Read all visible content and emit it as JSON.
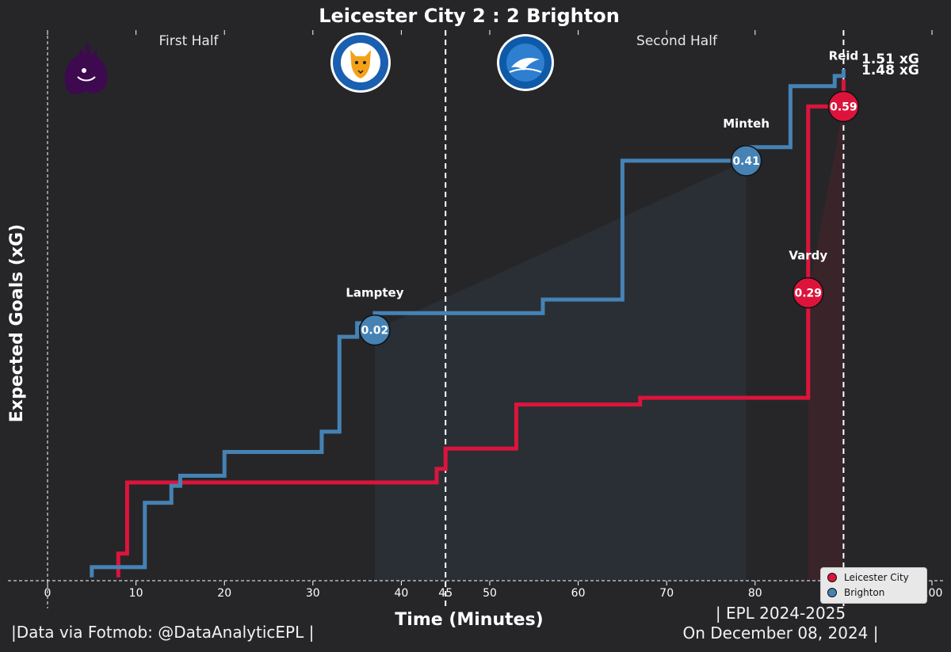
{
  "chart_data": {
    "type": "line",
    "title": "Leicester City 2 : 2 Brighton",
    "xlabel": "Time (Minutes)",
    "ylabel": "Expected Goals (xG)",
    "xlim": [
      0,
      100
    ],
    "ylim": [
      0,
      1.56
    ],
    "xticks": [
      0,
      10,
      20,
      30,
      40,
      45,
      50,
      60,
      70,
      80,
      90,
      100
    ],
    "half_labels": {
      "first": "First Half",
      "second": "Second Half"
    },
    "halftime_minute": 45,
    "fulltime_minute": 90,
    "series": [
      {
        "name": "Leicester City",
        "color": "#dc143c",
        "points": [
          [
            8,
            0.01
          ],
          [
            8,
            0.08
          ],
          [
            9,
            0.08
          ],
          [
            9,
            0.29
          ],
          [
            44,
            0.29
          ],
          [
            44,
            0.33
          ],
          [
            45,
            0.33
          ],
          [
            45,
            0.39
          ],
          [
            53,
            0.39
          ],
          [
            53,
            0.52
          ],
          [
            67,
            0.52
          ],
          [
            67,
            0.54
          ],
          [
            86,
            0.54
          ],
          [
            86,
            1.4
          ],
          [
            90,
            1.4
          ],
          [
            90,
            1.48
          ]
        ],
        "total_label": "1.48 xG",
        "goals": [
          {
            "minute": 86,
            "xg": 0.85,
            "label": "0.29",
            "scorer": "Vardy"
          },
          {
            "minute": 90,
            "xg": 1.4,
            "label": "0.59",
            "scorer": ""
          }
        ]
      },
      {
        "name": "Brighton",
        "color": "#4682b4",
        "points": [
          [
            5,
            0.01
          ],
          [
            5,
            0.04
          ],
          [
            11,
            0.04
          ],
          [
            11,
            0.23
          ],
          [
            14,
            0.23
          ],
          [
            14,
            0.28
          ],
          [
            15,
            0.28
          ],
          [
            15,
            0.31
          ],
          [
            20,
            0.31
          ],
          [
            20,
            0.38
          ],
          [
            31,
            0.38
          ],
          [
            31,
            0.44
          ],
          [
            33,
            0.44
          ],
          [
            33,
            0.72
          ],
          [
            35,
            0.72
          ],
          [
            35,
            0.76
          ],
          [
            37,
            0.76
          ],
          [
            37,
            0.79
          ],
          [
            56,
            0.79
          ],
          [
            56,
            0.83
          ],
          [
            65,
            0.83
          ],
          [
            65,
            1.24
          ],
          [
            79,
            1.24
          ],
          [
            79,
            1.28
          ],
          [
            84,
            1.28
          ],
          [
            84,
            1.46
          ],
          [
            89,
            1.46
          ],
          [
            89,
            1.49
          ],
          [
            90,
            1.49
          ],
          [
            90,
            1.51
          ]
        ],
        "total_label": "1.51 xG",
        "goals": [
          {
            "minute": 37,
            "xg": 0.74,
            "label": "0.02",
            "scorer": "Lamptey"
          },
          {
            "minute": 79,
            "xg": 1.24,
            "label": "0.41",
            "scorer": "Minteh"
          },
          {
            "minute": 90,
            "xg": 1.51,
            "label": "",
            "scorer": "Reid"
          }
        ]
      }
    ],
    "legend_position": "bottom-right",
    "grid": false
  },
  "footer": {
    "source": "|Data via Fotmob: @DataAnalyticEPL |",
    "season": "| EPL 2024-2025",
    "date": "On December 08, 2024 |"
  },
  "icons": {
    "league": "premier-league-lion-logo",
    "home": "leicester-city-crest",
    "away": "brighton-crest"
  },
  "colors": {
    "background": "#262628",
    "leicester": "#dc143c",
    "brighton": "#4682b4"
  }
}
